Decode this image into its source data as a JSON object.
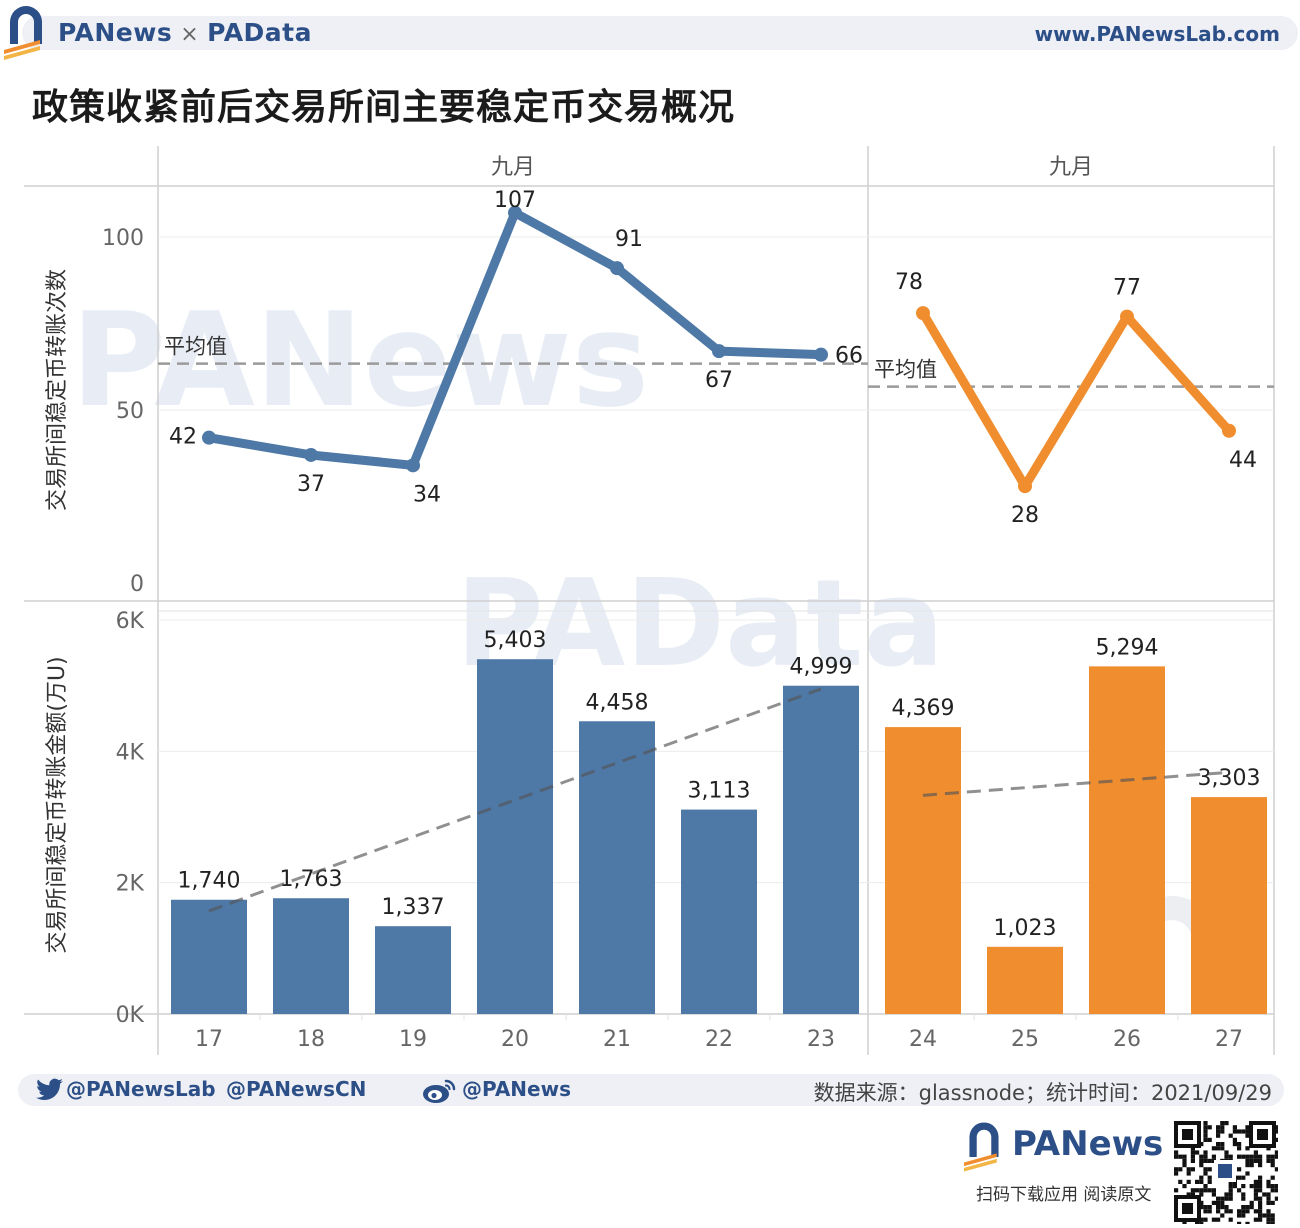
{
  "header": {
    "brand_left": "PANews",
    "brand_sep": "×",
    "brand_right": "PAData",
    "site": "www.PANewsLab.com",
    "title": "政策收紧前后交易所间主要稳定币交易概况"
  },
  "chart_data": {
    "type": "line+bar",
    "x": [
      "17",
      "18",
      "19",
      "20",
      "21",
      "22",
      "23",
      "24",
      "25",
      "26",
      "27"
    ],
    "groups": [
      {
        "label": "九月",
        "categories": [
          "17",
          "18",
          "19",
          "20",
          "21",
          "22",
          "23"
        ],
        "color": "#4e78a6"
      },
      {
        "label": "九月",
        "categories": [
          "24",
          "25",
          "26",
          "27"
        ],
        "color": "#f08d2e"
      }
    ],
    "top_panel": {
      "type": "line",
      "ylabel": "交易所间稳定币转账次数",
      "yticks": [
        0,
        50,
        100
      ],
      "ylim": [
        0,
        110
      ],
      "series": [
        {
          "values": [
            42,
            37,
            34,
            107,
            91,
            67,
            66
          ],
          "x": [
            "17",
            "18",
            "19",
            "20",
            "21",
            "22",
            "23"
          ],
          "color": "#4e78a6"
        },
        {
          "values": [
            78,
            28,
            77,
            44
          ],
          "x": [
            "24",
            "25",
            "26",
            "27"
          ],
          "color": "#f08d2e"
        }
      ],
      "average_label": "平均值",
      "averages": [
        63.4,
        56.75
      ]
    },
    "bottom_panel": {
      "type": "bar",
      "ylabel": "交易所间稳定币转账金额(万U)",
      "yticks": [
        0,
        2000,
        4000,
        6000
      ],
      "ytick_labels": [
        "0K",
        "2K",
        "4K",
        "6K"
      ],
      "ylim": [
        0,
        6000
      ],
      "values": [
        1740,
        1763,
        1337,
        5403,
        4458,
        3113,
        4999,
        4369,
        1023,
        5294,
        3303
      ],
      "labels": [
        "1,740",
        "1,763",
        "1,337",
        "5,403",
        "4,458",
        "3,113",
        "4,999",
        "4,369",
        "1,023",
        "5,294",
        "3,303"
      ],
      "trendlines": [
        {
          "x": [
            "17",
            "23"
          ],
          "y": [
            1570,
            4950
          ]
        },
        {
          "x": [
            "24",
            "27"
          ],
          "y": [
            3330,
            3680
          ]
        }
      ]
    },
    "watermarks": [
      "PANews",
      "PAData"
    ]
  },
  "footer": {
    "twitter_1": "@PANewsLab",
    "twitter_2": "@PANewsCN",
    "weibo": "@PANews",
    "source": "数据来源：glassnode；统计时间：2021/09/29",
    "bottom_brand": "PANews",
    "app_note": "扫码下载应用  阅读原文"
  },
  "icons": [
    "twitter-bird-icon",
    "weibo-icon",
    "panews-arch-logo-icon",
    "qr-code-icon"
  ]
}
